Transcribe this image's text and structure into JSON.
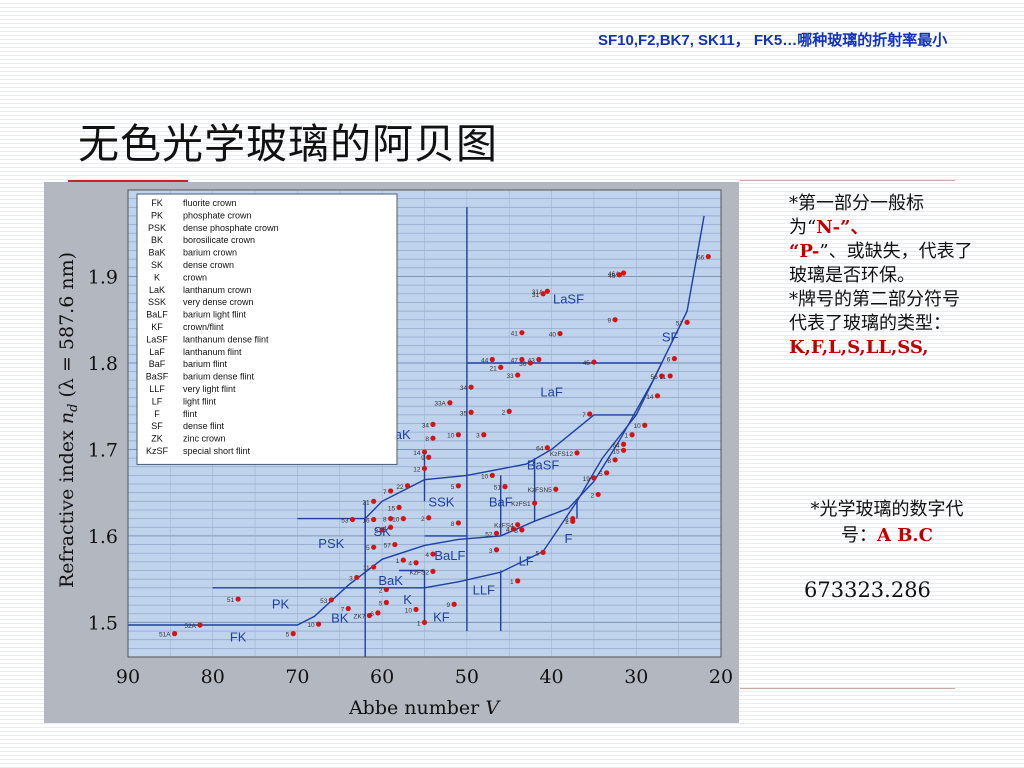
{
  "header": {
    "question": "SF10,F2,BK7, SK11， FK5…哪种玻璃的折射率最小",
    "title": "无色光学玻璃的阿贝图"
  },
  "chart_data": {
    "type": "scatter",
    "x_axis": {
      "label_text": "Abbe number",
      "label_var": "V",
      "min": 20,
      "max": 90,
      "reversed": true,
      "ticks": [
        "90",
        "80",
        "70",
        "60",
        "50",
        "40",
        "30",
        "20"
      ]
    },
    "y_axis": {
      "label_main": "Refractive index",
      "label_var": "n",
      "label_sub": "d",
      "label_tail": "(λ = 587.6 nm)",
      "min": 1.46,
      "max": 2.0,
      "ticks": [
        "1.5",
        "1.6",
        "1.7",
        "1.8",
        "1.9"
      ]
    },
    "grid": true,
    "legend_position": "top-left",
    "legend": [
      {
        "code": "FK",
        "name": "fluorite crown"
      },
      {
        "code": "PK",
        "name": "phosphate crown"
      },
      {
        "code": "PSK",
        "name": "dense phosphate crown"
      },
      {
        "code": "BK",
        "name": "borosilicate crown"
      },
      {
        "code": "BaK",
        "name": "barium crown"
      },
      {
        "code": "SK",
        "name": "dense crown"
      },
      {
        "code": "K",
        "name": "crown"
      },
      {
        "code": "LaK",
        "name": "lanthanum crown"
      },
      {
        "code": "SSK",
        "name": "very dense crown"
      },
      {
        "code": "BaLF",
        "name": "barium light flint"
      },
      {
        "code": "KF",
        "name": "crown/flint"
      },
      {
        "code": "LaSF",
        "name": "lanthanum dense flint"
      },
      {
        "code": "LaF",
        "name": "lanthanum flint"
      },
      {
        "code": "BaF",
        "name": "barium flint"
      },
      {
        "code": "BaSF",
        "name": "barium dense flint"
      },
      {
        "code": "LLF",
        "name": "very light flint"
      },
      {
        "code": "LF",
        "name": "light flint"
      },
      {
        "code": "F",
        "name": "flint"
      },
      {
        "code": "SF",
        "name": "dense flint"
      },
      {
        "code": "ZK",
        "name": "zinc crown"
      },
      {
        "code": "KzSF",
        "name": "special short flint"
      }
    ],
    "region_labels": [
      {
        "text": "FK",
        "x": 77,
        "y": 1.478
      },
      {
        "text": "PK",
        "x": 72,
        "y": 1.516
      },
      {
        "text": "BK",
        "x": 65,
        "y": 1.5
      },
      {
        "text": "PSK",
        "x": 66,
        "y": 1.586
      },
      {
        "text": "SK",
        "x": 60,
        "y": 1.6
      },
      {
        "text": "BaK",
        "x": 59,
        "y": 1.543
      },
      {
        "text": "K",
        "x": 57,
        "y": 1.521
      },
      {
        "text": "KF",
        "x": 53,
        "y": 1.501
      },
      {
        "text": "BaLF",
        "x": 52,
        "y": 1.572
      },
      {
        "text": "LLF",
        "x": 48,
        "y": 1.532
      },
      {
        "text": "SSK",
        "x": 53,
        "y": 1.634
      },
      {
        "text": "BaF",
        "x": 46,
        "y": 1.634
      },
      {
        "text": "LF",
        "x": 43,
        "y": 1.566
      },
      {
        "text": "F",
        "x": 38,
        "y": 1.592
      },
      {
        "text": "BaSF",
        "x": 41,
        "y": 1.677
      },
      {
        "text": "LaK",
        "x": 58,
        "y": 1.712
      },
      {
        "text": "LaF",
        "x": 40,
        "y": 1.761
      },
      {
        "text": "LaSF",
        "x": 38,
        "y": 1.869
      },
      {
        "text": "SF",
        "x": 26,
        "y": 1.825
      }
    ],
    "points": [
      {
        "label": "51A",
        "x": 84.5,
        "y": 1.487
      },
      {
        "label": "52A",
        "x": 81.5,
        "y": 1.497
      },
      {
        "label": "51",
        "x": 77,
        "y": 1.527
      },
      {
        "label": "5",
        "x": 70.5,
        "y": 1.487
      },
      {
        "label": "10",
        "x": 67.5,
        "y": 1.498
      },
      {
        "label": "53",
        "x": 66,
        "y": 1.526
      },
      {
        "label": "7",
        "x": 64,
        "y": 1.516
      },
      {
        "label": "3",
        "x": 63,
        "y": 1.552
      },
      {
        "label": "ZK7",
        "x": 61.5,
        "y": 1.508
      },
      {
        "label": "6",
        "x": 60.5,
        "y": 1.511
      },
      {
        "label": "5",
        "x": 59.5,
        "y": 1.523
      },
      {
        "label": "2",
        "x": 59.5,
        "y": 1.538
      },
      {
        "label": "11",
        "x": 61,
        "y": 1.564
      },
      {
        "label": "5",
        "x": 61,
        "y": 1.587
      },
      {
        "label": "57",
        "x": 58.5,
        "y": 1.59
      },
      {
        "label": "2",
        "x": 60,
        "y": 1.607
      },
      {
        "label": "1",
        "x": 57.5,
        "y": 1.572
      },
      {
        "label": "4",
        "x": 56,
        "y": 1.569
      },
      {
        "label": "10",
        "x": 56,
        "y": 1.515
      },
      {
        "label": "1",
        "x": 55,
        "y": 1.5
      },
      {
        "label": "KzFS2",
        "x": 54,
        "y": 1.559
      },
      {
        "label": "4",
        "x": 54,
        "y": 1.579
      },
      {
        "label": "9",
        "x": 51.5,
        "y": 1.521
      },
      {
        "label": "16",
        "x": 61,
        "y": 1.619
      },
      {
        "label": "4",
        "x": 59,
        "y": 1.61
      },
      {
        "label": "8",
        "x": 59,
        "y": 1.62
      },
      {
        "label": "10",
        "x": 57.5,
        "y": 1.62
      },
      {
        "label": "2",
        "x": 54.5,
        "y": 1.621
      },
      {
        "label": "8",
        "x": 51,
        "y": 1.615
      },
      {
        "label": "15",
        "x": 58,
        "y": 1.633
      },
      {
        "label": "53",
        "x": 63.5,
        "y": 1.619
      },
      {
        "label": "21",
        "x": 61,
        "y": 1.64
      },
      {
        "label": "7",
        "x": 59,
        "y": 1.652
      },
      {
        "label": "22",
        "x": 57,
        "y": 1.658
      },
      {
        "label": "5",
        "x": 51,
        "y": 1.658
      },
      {
        "label": "12",
        "x": 55,
        "y": 1.678
      },
      {
        "label": "9",
        "x": 54.5,
        "y": 1.691
      },
      {
        "label": "14",
        "x": 55,
        "y": 1.697
      },
      {
        "label": "8",
        "x": 54,
        "y": 1.713
      },
      {
        "label": "34",
        "x": 54,
        "y": 1.729
      },
      {
        "label": "10",
        "x": 51,
        "y": 1.717
      },
      {
        "label": "33A",
        "x": 52,
        "y": 1.754
      },
      {
        "label": "34",
        "x": 49.5,
        "y": 1.772
      },
      {
        "label": "35",
        "x": 49.5,
        "y": 1.743
      },
      {
        "label": "3",
        "x": 48,
        "y": 1.717
      },
      {
        "label": "2",
        "x": 45,
        "y": 1.744
      },
      {
        "label": "10",
        "x": 47,
        "y": 1.67
      },
      {
        "label": "51",
        "x": 45.5,
        "y": 1.657
      },
      {
        "label": "KzFS1",
        "x": 42,
        "y": 1.638
      },
      {
        "label": "KzFS4",
        "x": 44,
        "y": 1.613
      },
      {
        "label": "52",
        "x": 46.5,
        "y": 1.603
      },
      {
        "label": "4",
        "x": 44.5,
        "y": 1.608
      },
      {
        "label": "8",
        "x": 43.5,
        "y": 1.607
      },
      {
        "label": "3",
        "x": 46.5,
        "y": 1.584
      },
      {
        "label": "1",
        "x": 44,
        "y": 1.548
      },
      {
        "label": "5",
        "x": 41,
        "y": 1.581
      },
      {
        "label": "2",
        "x": 37.5,
        "y": 1.62
      },
      {
        "label": "2",
        "x": 37.5,
        "y": 1.617
      },
      {
        "label": "KzFSN5",
        "x": 39.5,
        "y": 1.654
      },
      {
        "label": "64",
        "x": 40.5,
        "y": 1.702
      },
      {
        "label": "KzFS12",
        "x": 37,
        "y": 1.696
      },
      {
        "label": "19",
        "x": 35,
        "y": 1.667
      },
      {
        "label": "5",
        "x": 33.5,
        "y": 1.673
      },
      {
        "label": "8",
        "x": 32.5,
        "y": 1.688
      },
      {
        "label": "2",
        "x": 34.5,
        "y": 1.648
      },
      {
        "label": "64",
        "x": 31.5,
        "y": 1.706
      },
      {
        "label": "15",
        "x": 31.5,
        "y": 1.699
      },
      {
        "label": "1",
        "x": 30.5,
        "y": 1.717
      },
      {
        "label": "10",
        "x": 29,
        "y": 1.728
      },
      {
        "label": "7",
        "x": 35.5,
        "y": 1.741
      },
      {
        "label": "14",
        "x": 27.5,
        "y": 1.762
      },
      {
        "label": "56",
        "x": 27,
        "y": 1.785
      },
      {
        "label": "11",
        "x": 26,
        "y": 1.785
      },
      {
        "label": "6",
        "x": 25.5,
        "y": 1.805
      },
      {
        "label": "57",
        "x": 24,
        "y": 1.847
      },
      {
        "label": "66",
        "x": 21.5,
        "y": 1.923
      },
      {
        "label": "46A",
        "x": 31.5,
        "y": 1.904
      },
      {
        "label": "46",
        "x": 32,
        "y": 1.902
      },
      {
        "label": "31A",
        "x": 40.5,
        "y": 1.883
      },
      {
        "label": "31",
        "x": 41,
        "y": 1.88
      },
      {
        "label": "9",
        "x": 32.5,
        "y": 1.85
      },
      {
        "label": "41",
        "x": 43.5,
        "y": 1.835
      },
      {
        "label": "40",
        "x": 39,
        "y": 1.834
      },
      {
        "label": "44",
        "x": 47,
        "y": 1.804
      },
      {
        "label": "47",
        "x": 43.5,
        "y": 1.804
      },
      {
        "label": "43",
        "x": 41.5,
        "y": 1.804
      },
      {
        "label": "45",
        "x": 35,
        "y": 1.801
      },
      {
        "label": "36",
        "x": 42.5,
        "y": 1.8
      },
      {
        "label": "21",
        "x": 46,
        "y": 1.795
      },
      {
        "label": "33",
        "x": 44,
        "y": 1.786
      }
    ]
  },
  "notes": {
    "bullet1_a": "*第一部分一般标为“",
    "bullet1_n": "N-",
    "bullet1_b": "”、",
    "bullet1_c": "“",
    "bullet1_p": "P-",
    "bullet1_d": "”、或缺失，代表了玻璃是否环保。",
    "bullet2": "*牌号的第二部分符号代表了玻璃的类型：",
    "bullet2_types": "K,F,L,S,LL,SS,",
    "bullet3": "*光学玻璃的数字代号：",
    "bullet3_answer": "A B.C",
    "number": "673323.286"
  }
}
